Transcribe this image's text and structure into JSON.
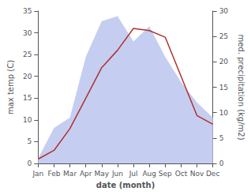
{
  "chart_data": {
    "type": "line",
    "xlabel": "date (month)",
    "ylabel": "max temp (C)",
    "y2label": "med. precipitation (kg/m2)",
    "categories": [
      "Jan",
      "Feb",
      "Mar",
      "Apr",
      "May",
      "Jun",
      "Jul",
      "Aug",
      "Sep",
      "Oct",
      "Nov",
      "Dec"
    ],
    "series": [
      {
        "type": "area",
        "axis": "y2",
        "color": "#c5cef0",
        "values": [
          1,
          7,
          9,
          21,
          28,
          29,
          24,
          27,
          21,
          16,
          12,
          9
        ]
      },
      {
        "type": "line",
        "color": "#b03030",
        "values": [
          1,
          3,
          8,
          15,
          22,
          26,
          31,
          30.5,
          29,
          20,
          11,
          9
        ]
      }
    ],
    "ylim": [
      0,
      35
    ],
    "yticks": [
      0,
      5,
      10,
      15,
      20,
      25,
      30,
      35
    ],
    "y2lim": [
      0,
      30
    ],
    "y2ticks": [
      0,
      5,
      10,
      15,
      20,
      25,
      30
    ],
    "grid": false
  }
}
